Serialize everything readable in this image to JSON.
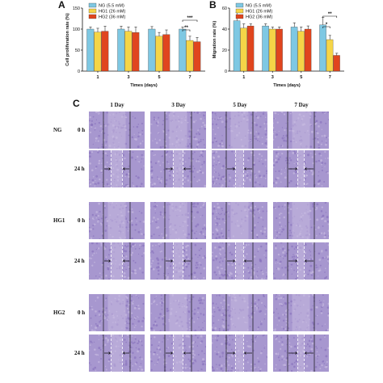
{
  "chart_data": [
    {
      "panel": "A",
      "type": "bar",
      "title": "",
      "xlabel": "Times (days)",
      "ylabel": "Cell proliferation rate (%)",
      "ylim": [
        0,
        150
      ],
      "yticks": [
        "0",
        "50",
        "100",
        "150"
      ],
      "categories": [
        "1",
        "3",
        "5",
        "7"
      ],
      "legend_position": "top-left",
      "series": [
        {
          "name": "NG (5.5 mM)",
          "color": "#7ec8e3",
          "values": [
            100,
            100,
            100,
            100
          ],
          "errors": [
            5,
            7,
            6,
            5
          ]
        },
        {
          "name": "HG1 (26 mM)",
          "color": "#f5d547",
          "values": [
            93,
            95,
            83,
            73
          ],
          "errors": [
            9,
            10,
            9,
            10
          ]
        },
        {
          "name": "HG2 (36 mM)",
          "color": "#e0451e",
          "values": [
            95,
            92,
            87,
            70
          ],
          "errors": [
            12,
            13,
            11,
            10
          ]
        }
      ],
      "annotations": [
        {
          "text": "**",
          "between": [
            "NG (5.5 mM)",
            "HG1 (26 mM)"
          ],
          "category": "7"
        },
        {
          "text": "***",
          "between": [
            "NG (5.5 mM)",
            "HG2 (36 mM)"
          ],
          "category": "7"
        }
      ]
    },
    {
      "panel": "B",
      "type": "bar",
      "title": "",
      "xlabel": "Times (days)",
      "ylabel": "Migration rate (%)",
      "ylim": [
        0,
        60
      ],
      "yticks": [
        "0",
        "20",
        "40",
        "60"
      ],
      "categories": [
        "1",
        "3",
        "5",
        "7"
      ],
      "legend_position": "top-left",
      "series": [
        {
          "name": "NG (5.5 mM)",
          "color": "#7ec8e3",
          "values": [
            48,
            43,
            42,
            44
          ],
          "errors": [
            8,
            2,
            4,
            7
          ]
        },
        {
          "name": "HG1 (26 mM)",
          "color": "#f5d547",
          "values": [
            41,
            40,
            38,
            30
          ],
          "errors": [
            4,
            2,
            4,
            4
          ]
        },
        {
          "name": "HG2 (36 mM)",
          "color": "#e0451e",
          "values": [
            43,
            40,
            40,
            15
          ],
          "errors": [
            2,
            2,
            3,
            2
          ]
        }
      ],
      "annotations": [
        {
          "text": "*",
          "between": [
            "NG (5.5 mM)",
            "HG1 (26 mM)"
          ],
          "category": "7"
        },
        {
          "text": "**",
          "between": [
            "NG (5.5 mM)",
            "HG2 (36 mM)"
          ],
          "category": "7"
        }
      ]
    }
  ],
  "panel_a_letter": "A",
  "panel_b_letter": "B",
  "panel_c": {
    "letter": "C",
    "columns": [
      "1 Day",
      "3 Day",
      "5 Day",
      "7 Day"
    ],
    "groups": [
      "NG",
      "HG1",
      "HG2"
    ],
    "times": [
      "0 h",
      "24 h"
    ],
    "image_colors": {
      "light": "#c6b9e0",
      "mid": "#a797cf",
      "dark": "#8a75bd"
    }
  }
}
